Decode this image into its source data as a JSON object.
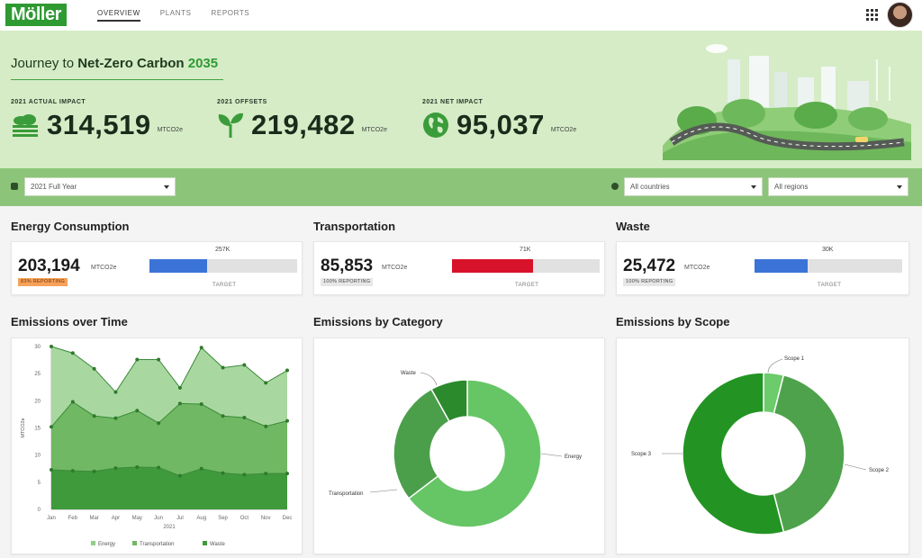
{
  "brand": {
    "name": "Möller"
  },
  "nav": {
    "tabs": [
      {
        "label": "OVERVIEW"
      },
      {
        "label": "PLANTS"
      },
      {
        "label": "REPORTS"
      }
    ]
  },
  "hero": {
    "title_prefix": "Journey to ",
    "title_bold": "Net-Zero Carbon ",
    "title_year": "2035",
    "kpis": [
      {
        "label": "2021 ACTUAL IMPACT",
        "value": "314,519",
        "unit": "MTCO2e",
        "icon": "factory-smoke-icon"
      },
      {
        "label": "2021 OFFSETS",
        "value": "219,482",
        "unit": "MTCO2e",
        "icon": "sprout-icon"
      },
      {
        "label": "2021 NET IMPACT",
        "value": "95,037",
        "unit": "MTCO2e",
        "icon": "globe-icon"
      }
    ]
  },
  "filters": {
    "period": "2021 Full Year",
    "countries": "All countries",
    "regions": "All regions"
  },
  "metrics": [
    {
      "title": "Energy Consumption",
      "value": "203,194",
      "unit": "MTCO2e",
      "badge": "83% REPORTING",
      "target": "257K",
      "target_label": "TARGET",
      "progress": 0.39,
      "color": "#3b74d6",
      "badge_bg": "#f5a25a",
      "badge_fg": "#7a2c00"
    },
    {
      "title": "Transportation",
      "value": "85,853",
      "unit": "MTCO2e",
      "badge": "100% REPORTING",
      "target": "71K",
      "target_label": "TARGET",
      "progress": 0.55,
      "color": "#d8122a",
      "badge_bg": "#e7e7e7",
      "badge_fg": "#444444"
    },
    {
      "title": "Waste",
      "value": "25,472",
      "unit": "MTCO2e",
      "badge": "100% REPORTING",
      "target": "30K",
      "target_label": "TARGET",
      "progress": 0.36,
      "color": "#3b74d6",
      "badge_bg": "#e7e7e7",
      "badge_fg": "#444444"
    }
  ],
  "charts": {
    "time_title": "Emissions over Time",
    "category_title": "Emissions by Category",
    "scope_title": "Emissions by Scope"
  },
  "chart_data": [
    {
      "type": "area",
      "title": "Emissions over Time",
      "xlabel": "2021",
      "ylabel": "MTCO2e",
      "ylim": [
        0,
        30
      ],
      "yticks": [
        0,
        5,
        10,
        15,
        20,
        25,
        30
      ],
      "categories": [
        "Jan",
        "Feb",
        "Mar",
        "Apr",
        "May",
        "Jun",
        "Jul",
        "Aug",
        "Sep",
        "Oct",
        "Nov",
        "Dec"
      ],
      "series": [
        {
          "name": "Energy",
          "color": "#a8d8a0",
          "values": [
            30,
            28.8,
            25.9,
            21.6,
            27.6,
            27.6,
            22.4,
            29.8,
            26.1,
            26.6,
            23.3,
            25.6
          ]
        },
        {
          "name": "Transportation",
          "color": "#70b863",
          "values": [
            15.2,
            19.8,
            17.2,
            16.8,
            18.2,
            15.9,
            19.5,
            19.4,
            17.2,
            16.9,
            15.3,
            16.3
          ]
        },
        {
          "name": "Waste",
          "color": "#3f9a3c",
          "values": [
            7.3,
            7.1,
            7.0,
            7.6,
            7.8,
            7.7,
            6.2,
            7.5,
            6.7,
            6.4,
            6.6,
            6.6
          ]
        }
      ],
      "grid": false,
      "legend": "bottom"
    },
    {
      "type": "pie",
      "title": "Emissions by Category",
      "labels": [
        "Energy",
        "Transportation",
        "Waste"
      ],
      "values": [
        203194,
        85853,
        25472
      ],
      "colors": [
        "#66c565",
        "#4c9f4a",
        "#2b8a2b"
      ]
    },
    {
      "type": "pie",
      "title": "Emissions by Scope",
      "labels": [
        "Scope 1",
        "Scope 2",
        "Scope 3"
      ],
      "values": [
        4,
        42,
        54
      ],
      "colors": [
        "#6ccb6a",
        "#4ea24b",
        "#239423"
      ]
    }
  ]
}
